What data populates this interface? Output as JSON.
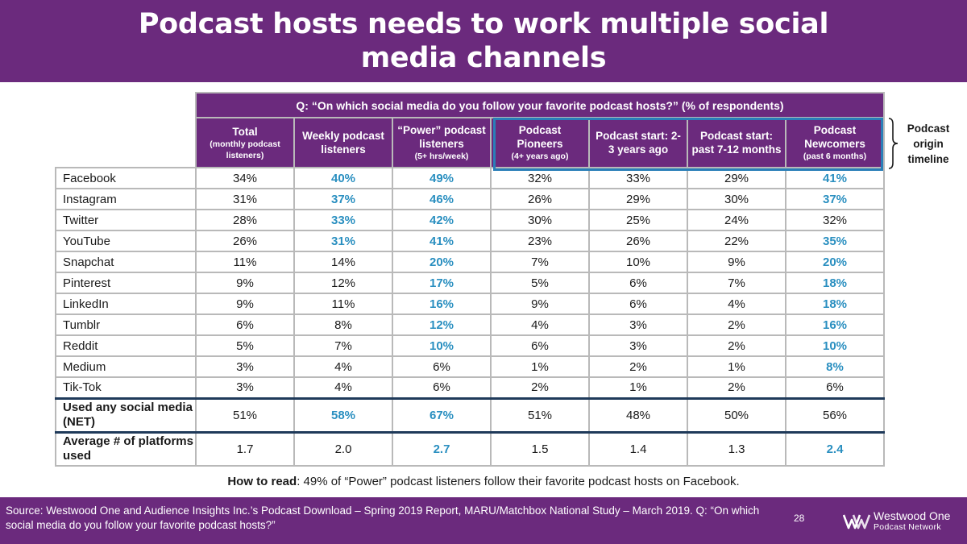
{
  "title": "Podcast hosts needs to work multiple social media channels",
  "question": "Q: “On which social media do you follow your favorite podcast hosts?” (% of respondents)",
  "columns": [
    {
      "label": "Total",
      "sub": "(monthly podcast listeners)"
    },
    {
      "label": "Weekly podcast listeners",
      "sub": ""
    },
    {
      "label": "“Power” podcast listeners",
      "sub": "(5+ hrs/week)"
    },
    {
      "label": "Podcast Pioneers",
      "sub": "(4+ years ago)"
    },
    {
      "label": "Podcast start: 2-3 years ago",
      "sub": ""
    },
    {
      "label": "Podcast start: past 7-12 months",
      "sub": ""
    },
    {
      "label": "Podcast Newcomers",
      "sub": "(past 6 months)"
    }
  ],
  "rows": [
    {
      "label": "Facebook",
      "values": [
        "34%",
        "40%",
        "49%",
        "32%",
        "33%",
        "29%",
        "41%"
      ]
    },
    {
      "label": "Instagram",
      "values": [
        "31%",
        "37%",
        "46%",
        "26%",
        "29%",
        "30%",
        "37%"
      ]
    },
    {
      "label": "Twitter",
      "values": [
        "28%",
        "33%",
        "42%",
        "30%",
        "25%",
        "24%",
        "32%"
      ]
    },
    {
      "label": "YouTube",
      "values": [
        "26%",
        "31%",
        "41%",
        "23%",
        "26%",
        "22%",
        "35%"
      ]
    },
    {
      "label": "Snapchat",
      "values": [
        "11%",
        "14%",
        "20%",
        "7%",
        "10%",
        "9%",
        "20%"
      ]
    },
    {
      "label": "Pinterest",
      "values": [
        "9%",
        "12%",
        "17%",
        "5%",
        "6%",
        "7%",
        "18%"
      ]
    },
    {
      "label": "LinkedIn",
      "values": [
        "9%",
        "11%",
        "16%",
        "9%",
        "6%",
        "4%",
        "18%"
      ]
    },
    {
      "label": "Tumblr",
      "values": [
        "6%",
        "8%",
        "12%",
        "4%",
        "3%",
        "2%",
        "16%"
      ]
    },
    {
      "label": "Reddit",
      "values": [
        "5%",
        "7%",
        "10%",
        "6%",
        "3%",
        "2%",
        "10%"
      ]
    },
    {
      "label": "Medium",
      "values": [
        "3%",
        "4%",
        "6%",
        "1%",
        "2%",
        "1%",
        "8%"
      ]
    },
    {
      "label": "Tik-Tok",
      "values": [
        "3%",
        "4%",
        "6%",
        "2%",
        "1%",
        "2%",
        "6%"
      ]
    }
  ],
  "highlights": [
    [
      1,
      2,
      6
    ],
    [
      1,
      2,
      6
    ],
    [
      1,
      2
    ],
    [
      1,
      2,
      6
    ],
    [
      2,
      6
    ],
    [
      2,
      6
    ],
    [
      2,
      6
    ],
    [
      2,
      6
    ],
    [
      2,
      6
    ],
    [
      6
    ],
    []
  ],
  "summary_rows": [
    {
      "label": "Used any social media (NET)",
      "values": [
        "51%",
        "58%",
        "67%",
        "51%",
        "48%",
        "50%",
        "56%"
      ],
      "highlights": [
        1,
        2
      ]
    },
    {
      "label": "Average # of platforms used",
      "values": [
        "1.7",
        "2.0",
        "2.7",
        "1.5",
        "1.4",
        "1.3",
        "2.4"
      ],
      "highlights": [
        2,
        6
      ]
    }
  ],
  "origin_label": "Podcast origin timeline",
  "how_to_read": {
    "bold": "How to read",
    "text": ": 49% of “Power” podcast listeners follow their favorite podcast hosts on Facebook."
  },
  "source": "Source: Westwood One and Audience Insights Inc.’s Podcast Download – Spring 2019 Report, MARU/Matchbox National Study – March 2019. Q: “On which social media do you follow your favorite podcast hosts?”",
  "page_number": "28",
  "logo": {
    "line1": "Westwood One",
    "line2": "Podcast Network"
  },
  "colors": {
    "brand_purple": "#6b2a7d",
    "highlight_blue": "#2a8fc0",
    "box_blue": "#2a7fb8"
  }
}
